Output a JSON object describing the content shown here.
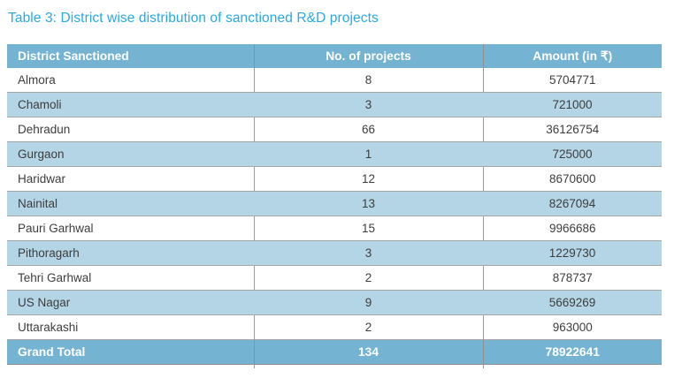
{
  "title": "Table 3: District wise distribution of sanctioned R&D projects",
  "table": {
    "columns": [
      "District Sanctioned",
      "No. of projects",
      "Amount (in ₹)"
    ],
    "rows": [
      {
        "district": "Almora",
        "projects": "8",
        "amount": "5704771"
      },
      {
        "district": "Chamoli",
        "projects": "3",
        "amount": "721000"
      },
      {
        "district": "Dehradun",
        "projects": "66",
        "amount": "36126754"
      },
      {
        "district": "Gurgaon",
        "projects": "1",
        "amount": "725000"
      },
      {
        "district": "Haridwar",
        "projects": "12",
        "amount": "8670600"
      },
      {
        "district": "Nainital",
        "projects": "13",
        "amount": "8267094"
      },
      {
        "district": "Pauri Garhwal",
        "projects": "15",
        "amount": "9966686"
      },
      {
        "district": "Pithoragarh",
        "projects": "3",
        "amount": "1229730"
      },
      {
        "district": "Tehri Garhwal",
        "projects": "2",
        "amount": "878737"
      },
      {
        "district": "US Nagar",
        "projects": "9",
        "amount": "5669269"
      },
      {
        "district": "Uttarakashi",
        "projects": "2",
        "amount": "963000"
      }
    ],
    "grand_total": {
      "district": "Grand Total",
      "projects": "134",
      "amount": "78922641"
    }
  },
  "colors": {
    "title_text": "#29a9e1",
    "header_bg": "#74b3d2",
    "alt_row_bg": "#b4d5e6",
    "total_bg": "#74b3d2",
    "grid_line": "#9c9c9c",
    "body_text": "#3d3d3d"
  }
}
